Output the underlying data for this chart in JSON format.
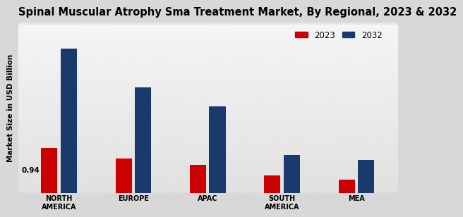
{
  "title": "Spinal Muscular Atrophy Sma Treatment Market, By Regional, 2023 & 2032",
  "ylabel": "Market Size in USD Billion",
  "categories": [
    "NORTH\nAMERICA",
    "EUROPE",
    "APAC",
    "SOUTH\nAMERICA",
    "MEA"
  ],
  "values_2023": [
    0.94,
    0.72,
    0.58,
    0.36,
    0.28
  ],
  "values_2032": [
    3.0,
    2.2,
    1.8,
    0.78,
    0.68
  ],
  "color_2023": "#cc0000",
  "color_2032": "#1a3a6e",
  "annotation_text": "0.94",
  "annotation_index": 0,
  "legend_labels": [
    "2023",
    "2032"
  ],
  "background_color": "#e0e0e0",
  "bar_width": 0.22,
  "title_fontsize": 10.5,
  "axis_label_fontsize": 7.5,
  "tick_fontsize": 7,
  "legend_fontsize": 8.5
}
